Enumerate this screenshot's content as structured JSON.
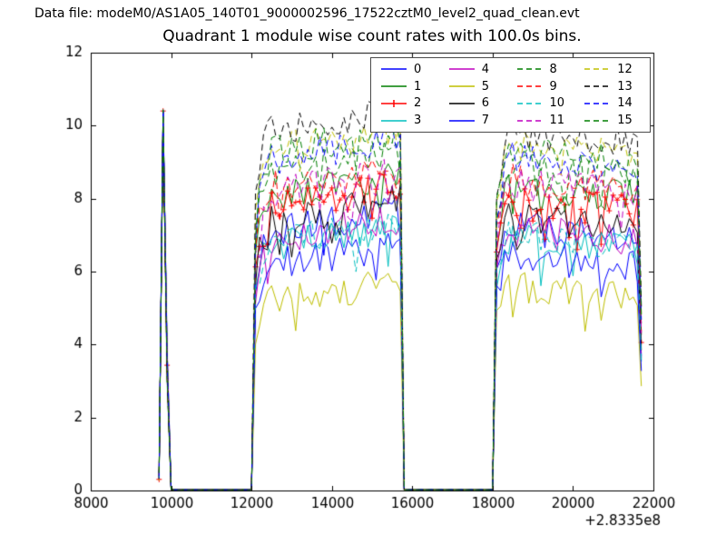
{
  "header": {
    "data_file_label": "Data file: modeM0/AS1A05_140T01_9000002596_17522cztM0_level2_quad_clean.evt"
  },
  "chart_data": {
    "type": "line",
    "title": "Quadrant 1 module wise count rates with 100.0s bins.",
    "xlabel": "",
    "ylabel": "",
    "xlim": [
      8000,
      22000
    ],
    "ylim": [
      0,
      12
    ],
    "x_ticks": [
      "8000",
      "10000",
      "12000",
      "14000",
      "16000",
      "18000",
      "20000",
      "22000"
    ],
    "x_tick_values": [
      8000,
      10000,
      12000,
      14000,
      16000,
      18000,
      20000,
      22000
    ],
    "y_ticks": [
      "0",
      "2",
      "4",
      "6",
      "8",
      "10",
      "12"
    ],
    "y_tick_values": [
      0,
      2,
      4,
      6,
      8,
      10,
      12
    ],
    "x_offset_label": "+2.8335e8",
    "grid": false,
    "legend_position": "upper center inside axes",
    "legend_columns": 4,
    "bin_seconds": 100,
    "profile_note": "Count rate vs time: brief spike near 9800 reaching ~10, zero 10000-12000, plateau 12100-15700 (level1), zero 15800-18000, plateau 18100-21600 (level2), final drop at 21700.",
    "segments": {
      "spike_start": 9700,
      "spike_peak_x": 9800,
      "spike_peak_value": 10.2,
      "gap1": [
        10000,
        12000
      ],
      "on1": [
        12100,
        15700
      ],
      "gap2": [
        15800,
        18000
      ],
      "on2": [
        18100,
        21600
      ],
      "end_x": 21700,
      "off_value": 0
    },
    "series": [
      {
        "name": "0",
        "color": "#0000ff",
        "dash": "solid",
        "level1": 7.3,
        "level2": 7.1
      },
      {
        "name": "1",
        "color": "#007f00",
        "dash": "solid",
        "level1": 8.3,
        "level2": 8.2
      },
      {
        "name": "2",
        "color": "#ff0000",
        "dash": "solid",
        "marker": "+",
        "level1": 8.0,
        "level2": 7.8
      },
      {
        "name": "3",
        "color": "#00bfbf",
        "dash": "solid",
        "level1": 6.9,
        "level2": 6.8
      },
      {
        "name": "4",
        "color": "#bf00bf",
        "dash": "solid",
        "level1": 7.1,
        "level2": 7.0
      },
      {
        "name": "5",
        "color": "#bfbf00",
        "dash": "solid",
        "level1": 5.4,
        "level2": 5.5
      },
      {
        "name": "6",
        "color": "#000000",
        "dash": "solid",
        "level1": 7.6,
        "level2": 7.4
      },
      {
        "name": "7",
        "color": "#0000ff",
        "dash": "solid",
        "level1": 6.4,
        "level2": 6.3
      },
      {
        "name": "8",
        "color": "#007f00",
        "dash": "dashed",
        "level1": 9.0,
        "level2": 8.8
      },
      {
        "name": "9",
        "color": "#ff0000",
        "dash": "dashed",
        "level1": 8.6,
        "level2": 8.4
      },
      {
        "name": "10",
        "color": "#00bfbf",
        "dash": "dashed",
        "level1": 7.0,
        "level2": 6.9
      },
      {
        "name": "11",
        "color": "#bf00bf",
        "dash": "dashed",
        "level1": 8.4,
        "level2": 8.3
      },
      {
        "name": "12",
        "color": "#bfbf00",
        "dash": "dashed",
        "level1": 9.6,
        "level2": 9.3
      },
      {
        "name": "13",
        "color": "#000000",
        "dash": "dashed",
        "level1": 10.1,
        "level2": 9.7
      },
      {
        "name": "14",
        "color": "#0000ff",
        "dash": "dashed",
        "level1": 9.3,
        "level2": 9.0
      },
      {
        "name": "15",
        "color": "#007f00",
        "dash": "dashed",
        "level1": 9.5,
        "level2": 9.2
      }
    ]
  }
}
